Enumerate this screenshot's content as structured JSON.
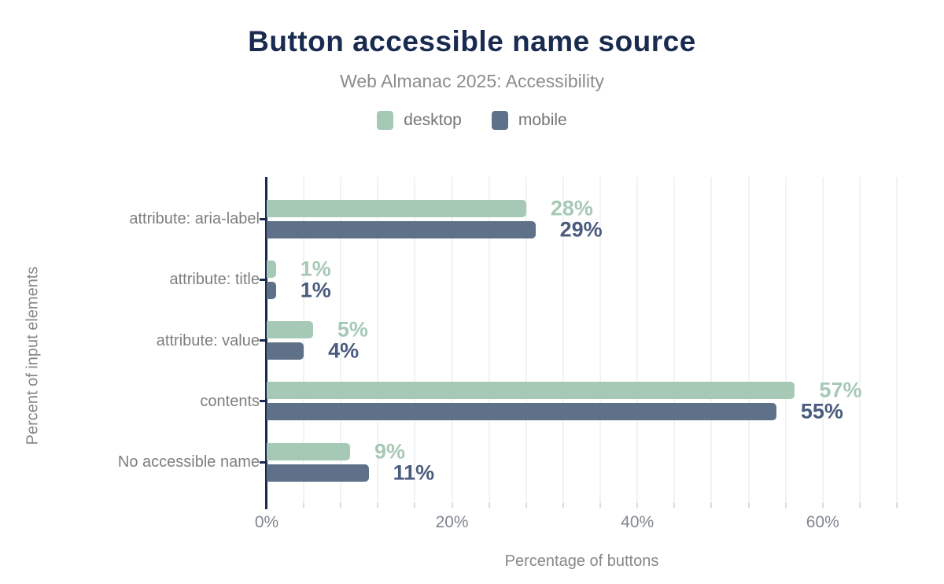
{
  "chart_data": {
    "type": "bar",
    "orientation": "horizontal",
    "title": "Button accessible name source",
    "subtitle": "Web Almanac 2025: Accessibility",
    "categories": [
      "attribute: aria-label",
      "attribute: title",
      "attribute: value",
      "contents",
      "No accessible name"
    ],
    "series": [
      {
        "name": "desktop",
        "color": "#a6c9b5",
        "label_color": "#a6c9b5",
        "values": [
          28,
          1,
          5,
          57,
          9
        ]
      },
      {
        "name": "mobile",
        "color": "#5f7189",
        "label_color": "#4a5c7e",
        "values": [
          29,
          1,
          4,
          55,
          11
        ]
      }
    ],
    "value_suffix": "%",
    "value_labels": {
      "desktop": [
        "28%",
        "1%",
        "5%",
        "57%",
        "9%"
      ],
      "mobile": [
        "29%",
        "1%",
        "4%",
        "55%",
        "11%"
      ]
    },
    "xlabel": "Percentage of buttons",
    "ylabel": "Percent of input elements",
    "x_ticks": [
      "0%",
      "20%",
      "40%",
      "60%"
    ],
    "x_tick_values": [
      0,
      20,
      40,
      60
    ],
    "xlim": [
      0,
      68
    ],
    "grid_interval": 4,
    "grid_on": true,
    "legend_position": "top",
    "colors": {
      "title": "#1a2b50",
      "axis_line": "#1a2b50",
      "subtitle_text": "#8c8c8c",
      "gridline": "#f1f2f4"
    }
  }
}
